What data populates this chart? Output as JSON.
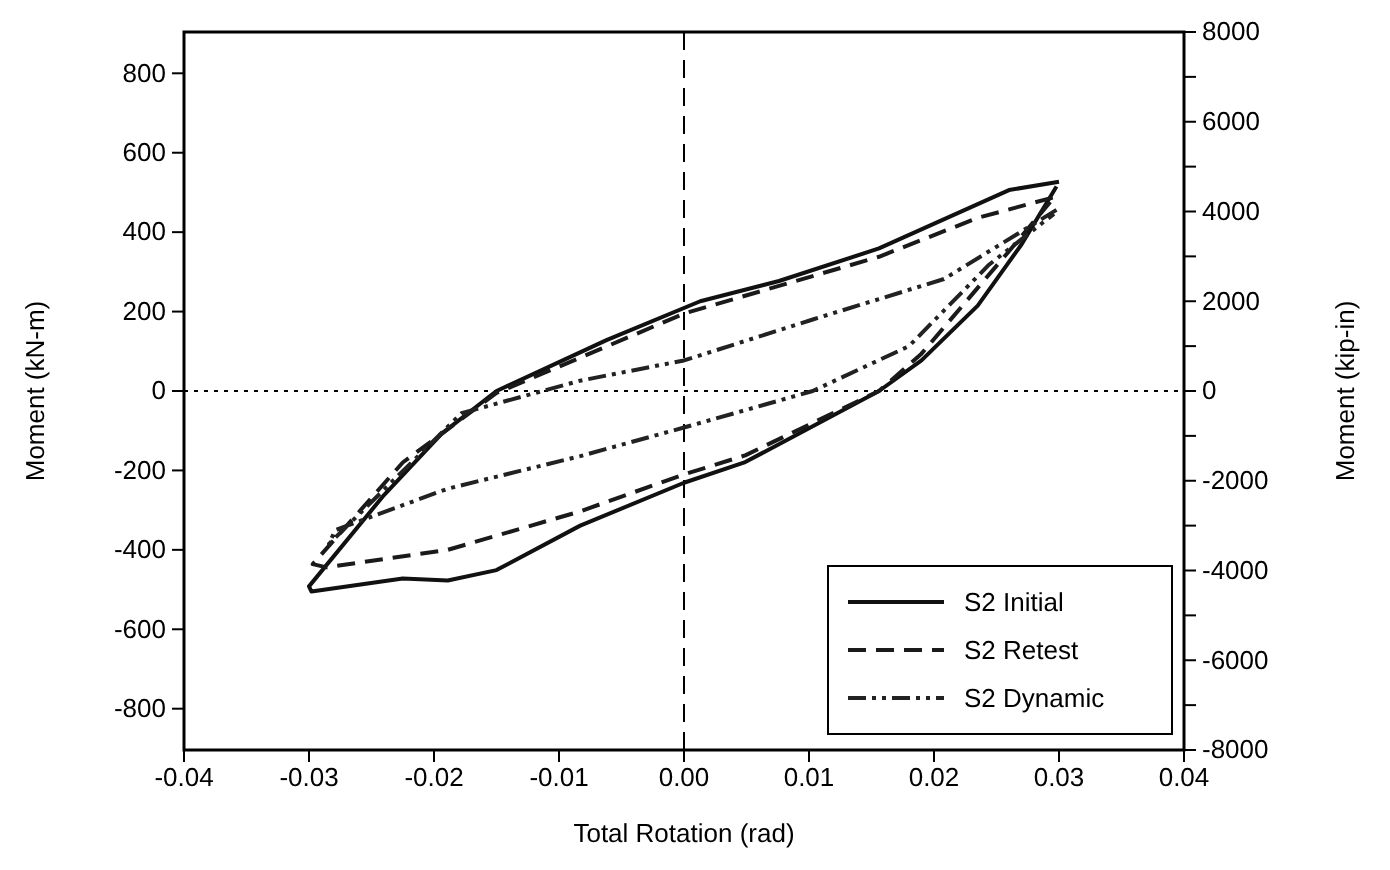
{
  "chart_data": {
    "type": "line",
    "xlabel": "Total Rotation (rad)",
    "ylabel": "Moment (kN-m)",
    "y2label": "Moment (kip-in)",
    "xlim": [
      -0.04,
      0.04
    ],
    "xticks": [
      -0.04,
      -0.03,
      -0.02,
      -0.01,
      {
        "value": 0,
        "label": "0.00"
      },
      0.01,
      0.02,
      0.03,
      0.04
    ],
    "ylim": [
      -904,
      904
    ],
    "yticks": [
      -800,
      -600,
      -400,
      -200,
      0,
      200,
      400,
      600,
      800
    ],
    "y2lim": [
      -8000,
      8000
    ],
    "y2ticks": [
      -8000,
      {
        "value": -7000,
        "label": null
      },
      -6000,
      {
        "value": -5000,
        "label": null
      },
      -4000,
      {
        "value": -3000,
        "label": null
      },
      -2000,
      {
        "value": -1000,
        "label": null
      },
      0,
      {
        "value": 1000,
        "label": null
      },
      2000,
      {
        "value": 3000,
        "label": null
      },
      4000,
      {
        "value": 5000,
        "label": null
      },
      6000,
      {
        "value": 7000,
        "label": null
      },
      8000
    ],
    "grid": false,
    "legend": "bottom right",
    "marker": "none",
    "ref_lines": [
      {
        "axis": "x",
        "value": 0,
        "line_style": "dashed",
        "color": "#000000"
      },
      {
        "axis": "y",
        "value": 0,
        "line_style": "dotted",
        "color": "#000000"
      }
    ],
    "series": [
      {
        "name": "S2 Initial",
        "color": "#111111",
        "line_style": "solid",
        "x": [
          0.03,
          0.026,
          0.0156,
          0.0076,
          0.0013,
          -0.0062,
          -0.015,
          -0.0194,
          -0.024,
          -0.03,
          -0.0298,
          -0.0225,
          -0.0189,
          -0.015,
          -0.0083,
          0,
          0.0049,
          0.0156,
          0.019,
          0.0235,
          0.027,
          0.0298
        ],
        "values": [
          527,
          506,
          359,
          277,
          226,
          128,
          0,
          -108,
          -262,
          -492,
          -505,
          -472,
          -477,
          -451,
          -339,
          -231,
          -179,
          0,
          77,
          215,
          369,
          515
        ]
      },
      {
        "name": "S2 Retest",
        "color": "#1a1a1a",
        "line_style": "dashed",
        "x": [
          0.0295,
          0.0235,
          0.0156,
          0,
          -0.0062,
          -0.015,
          -0.0225,
          -0.0297,
          -0.0286,
          -0.0189,
          -0.0083,
          0,
          0.0049,
          0.0156,
          0.019,
          0.026,
          0.0293
        ],
        "values": [
          487,
          436,
          338,
          195,
          112,
          -5,
          -180,
          -436,
          -444,
          -400,
          -303,
          -210,
          -162,
          0,
          94,
          352,
          476
        ]
      },
      {
        "name": "S2 Dynamic",
        "color": "#222222",
        "line_style": "dotted",
        "x": [
          0.0298,
          0.0208,
          0.0103,
          0,
          -0.0083,
          -0.0178,
          -0.0284,
          -0.0279,
          -0.0189,
          -0.0083,
          0,
          0.0103,
          0.018,
          0.0244,
          0.0296
        ],
        "values": [
          456,
          282,
          180,
          77,
          26,
          -56,
          -385,
          -350,
          -246,
          -164,
          -92,
          0,
          113,
          318,
          446
        ]
      }
    ]
  }
}
